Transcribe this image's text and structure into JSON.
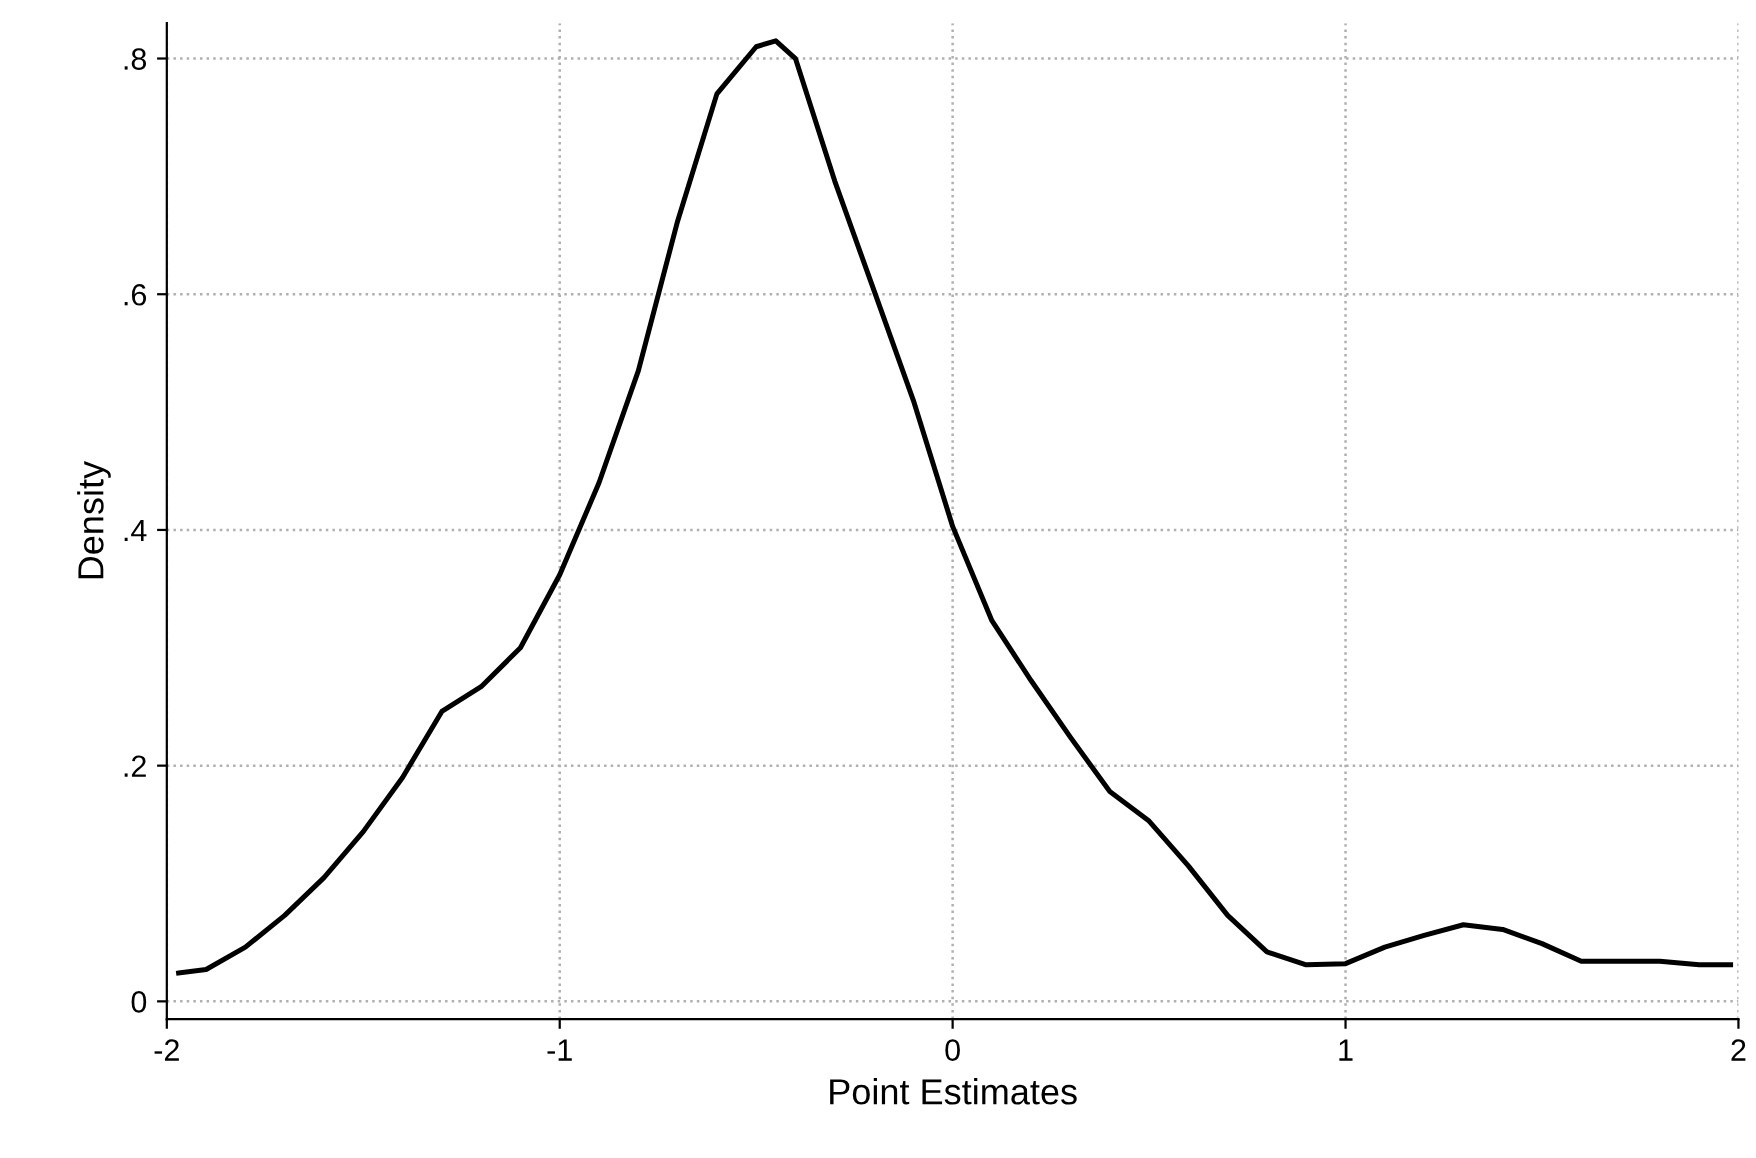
{
  "chart_data": {
    "type": "line",
    "xlabel": "Point Estimates",
    "ylabel": "Density",
    "x": [
      -1.97,
      -1.9,
      -1.8,
      -1.7,
      -1.6,
      -1.5,
      -1.4,
      -1.3,
      -1.2,
      -1.1,
      -1.0,
      -0.9,
      -0.8,
      -0.7,
      -0.6,
      -0.5,
      -0.45,
      -0.4,
      -0.3,
      -0.2,
      -0.1,
      0,
      0.1,
      0.2,
      0.3,
      0.4,
      0.5,
      0.6,
      0.7,
      0.8,
      0.9,
      1.0,
      1.1,
      1.2,
      1.3,
      1.4,
      1.5,
      1.6,
      1.7,
      1.8,
      1.9,
      1.98
    ],
    "series": [
      {
        "color": "#000000",
        "values": [
          0.024,
          0.027,
          0.046,
          0.073,
          0.105,
          0.144,
          0.19,
          0.246,
          0.267,
          0.3,
          0.362,
          0.44,
          0.535,
          0.662,
          0.77,
          0.81,
          0.815,
          0.8,
          0.696,
          0.603,
          0.51,
          0.403,
          0.323,
          0.272,
          0.224,
          0.178,
          0.153,
          0.115,
          0.073,
          0.042,
          0.031,
          0.032,
          0.046,
          0.056,
          0.065,
          0.061,
          0.049,
          0.034,
          0.034,
          0.034,
          0.031,
          0.031
        ]
      }
    ],
    "xlim": [
      -2,
      2
    ],
    "ylim": [
      -0.015,
      0.83
    ],
    "xticks": [
      -2,
      -1,
      0,
      1,
      2
    ],
    "yticks": [
      0,
      {
        "value": 0.2,
        "label": ".2"
      },
      {
        "value": 0.4,
        "label": ".4"
      },
      {
        "value": 0.6,
        "label": ".6"
      },
      {
        "value": 0.8,
        "label": ".8"
      }
    ],
    "grid": true,
    "line_style": "solid"
  }
}
